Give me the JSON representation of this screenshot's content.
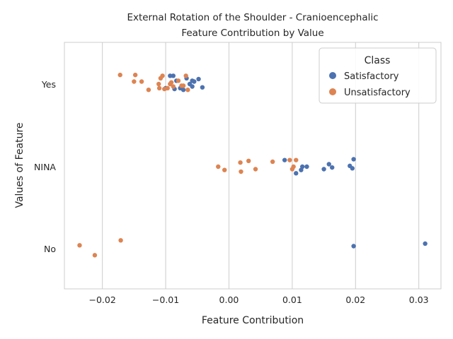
{
  "chart_data": {
    "type": "scatter",
    "title_lines": [
      "External Rotation of the Shoulder - Cranioencephalic",
      "Feature Contribution by Value"
    ],
    "xlabel": "Feature Contribution",
    "ylabel": "Values of Feature",
    "xlim": [
      -0.026,
      0.0335
    ],
    "xticks": [
      -0.02,
      -0.01,
      0.0,
      0.01,
      0.02,
      0.03
    ],
    "xtick_labels": [
      "−0.02",
      "−0.01",
      "0.00",
      "0.01",
      "0.02",
      "0.03"
    ],
    "categories": [
      "Yes",
      "NINA",
      "No"
    ],
    "grid": true,
    "legend": {
      "title": "Class",
      "placement": "top-right",
      "entries": [
        {
          "label": "Satisfactory",
          "color": "#4c72b0"
        },
        {
          "label": "Unsatisfactory",
          "color": "#dd8452"
        }
      ]
    },
    "series": [
      {
        "name": "Satisfactory",
        "color": "#4c72b0",
        "points": [
          {
            "x": -0.0093,
            "y": "Yes",
            "j": -0.1
          },
          {
            "x": -0.0088,
            "y": "Yes",
            "j": -0.1
          },
          {
            "x": -0.0083,
            "y": "Yes",
            "j": -0.04
          },
          {
            "x": -0.0077,
            "y": "Yes",
            "j": 0.05
          },
          {
            "x": -0.0072,
            "y": "Yes",
            "j": 0.07
          },
          {
            "x": -0.0067,
            "y": "Yes",
            "j": -0.07
          },
          {
            "x": -0.0062,
            "y": "Yes",
            "j": 0.0
          },
          {
            "x": -0.0058,
            "y": "Yes",
            "j": -0.04
          },
          {
            "x": -0.0055,
            "y": "Yes",
            "j": -0.03
          },
          {
            "x": -0.0058,
            "y": "Yes",
            "j": 0.03
          },
          {
            "x": -0.0048,
            "y": "Yes",
            "j": -0.06
          },
          {
            "x": -0.0042,
            "y": "Yes",
            "j": 0.04
          },
          {
            "x": -0.0086,
            "y": "Yes",
            "j": 0.06
          },
          {
            "x": -0.01,
            "y": "Yes",
            "j": 0.05
          },
          {
            "x": 0.0088,
            "y": "NINA",
            "j": -0.08
          },
          {
            "x": 0.0106,
            "y": "NINA",
            "j": 0.08
          },
          {
            "x": 0.0114,
            "y": "NINA",
            "j": 0.04
          },
          {
            "x": 0.0116,
            "y": "NINA",
            "j": 0.0
          },
          {
            "x": 0.0123,
            "y": "NINA",
            "j": 0.0
          },
          {
            "x": 0.015,
            "y": "NINA",
            "j": 0.03
          },
          {
            "x": 0.0158,
            "y": "NINA",
            "j": -0.03
          },
          {
            "x": 0.0163,
            "y": "NINA",
            "j": 0.01
          },
          {
            "x": 0.0191,
            "y": "NINA",
            "j": -0.01
          },
          {
            "x": 0.0195,
            "y": "NINA",
            "j": 0.02
          },
          {
            "x": 0.0197,
            "y": "NINA",
            "j": -0.09
          },
          {
            "x": 0.0197,
            "y": "No",
            "j": -0.03
          },
          {
            "x": 0.031,
            "y": "No",
            "j": -0.06
          }
        ]
      },
      {
        "name": "Unsatisfactory",
        "color": "#dd8452",
        "points": [
          {
            "x": -0.0172,
            "y": "Yes",
            "j": -0.11
          },
          {
            "x": -0.015,
            "y": "Yes",
            "j": -0.03
          },
          {
            "x": -0.0148,
            "y": "Yes",
            "j": -0.11
          },
          {
            "x": -0.0138,
            "y": "Yes",
            "j": -0.03
          },
          {
            "x": -0.0127,
            "y": "Yes",
            "j": 0.07
          },
          {
            "x": -0.0111,
            "y": "Yes",
            "j": 0.0
          },
          {
            "x": -0.0108,
            "y": "Yes",
            "j": -0.07
          },
          {
            "x": -0.0105,
            "y": "Yes",
            "j": -0.1
          },
          {
            "x": -0.011,
            "y": "Yes",
            "j": 0.05
          },
          {
            "x": -0.0102,
            "y": "Yes",
            "j": 0.06
          },
          {
            "x": -0.0097,
            "y": "Yes",
            "j": 0.05
          },
          {
            "x": -0.0093,
            "y": "Yes",
            "j": 0.0
          },
          {
            "x": -0.0091,
            "y": "Yes",
            "j": -0.02
          },
          {
            "x": -0.0088,
            "y": "Yes",
            "j": 0.03
          },
          {
            "x": -0.008,
            "y": "Yes",
            "j": -0.04
          },
          {
            "x": -0.0075,
            "y": "Yes",
            "j": 0.02
          },
          {
            "x": -0.0072,
            "y": "Yes",
            "j": 0.02
          },
          {
            "x": -0.0068,
            "y": "Yes",
            "j": -0.1
          },
          {
            "x": -0.0065,
            "y": "Yes",
            "j": 0.07
          },
          {
            "x": -0.0017,
            "y": "NINA",
            "j": 0.0
          },
          {
            "x": -0.0007,
            "y": "NINA",
            "j": 0.04
          },
          {
            "x": 0.0018,
            "y": "NINA",
            "j": -0.05
          },
          {
            "x": 0.0019,
            "y": "NINA",
            "j": 0.06
          },
          {
            "x": 0.0031,
            "y": "NINA",
            "j": -0.07
          },
          {
            "x": 0.0042,
            "y": "NINA",
            "j": 0.03
          },
          {
            "x": 0.0069,
            "y": "NINA",
            "j": -0.06
          },
          {
            "x": 0.0096,
            "y": "NINA",
            "j": -0.08
          },
          {
            "x": 0.01,
            "y": "NINA",
            "j": 0.03
          },
          {
            "x": 0.0102,
            "y": "NINA",
            "j": 0.0
          },
          {
            "x": 0.0106,
            "y": "NINA",
            "j": -0.08
          },
          {
            "x": -0.0236,
            "y": "No",
            "j": -0.04
          },
          {
            "x": -0.0171,
            "y": "No",
            "j": -0.1
          },
          {
            "x": -0.0212,
            "y": "No",
            "j": 0.08
          }
        ]
      }
    ]
  }
}
